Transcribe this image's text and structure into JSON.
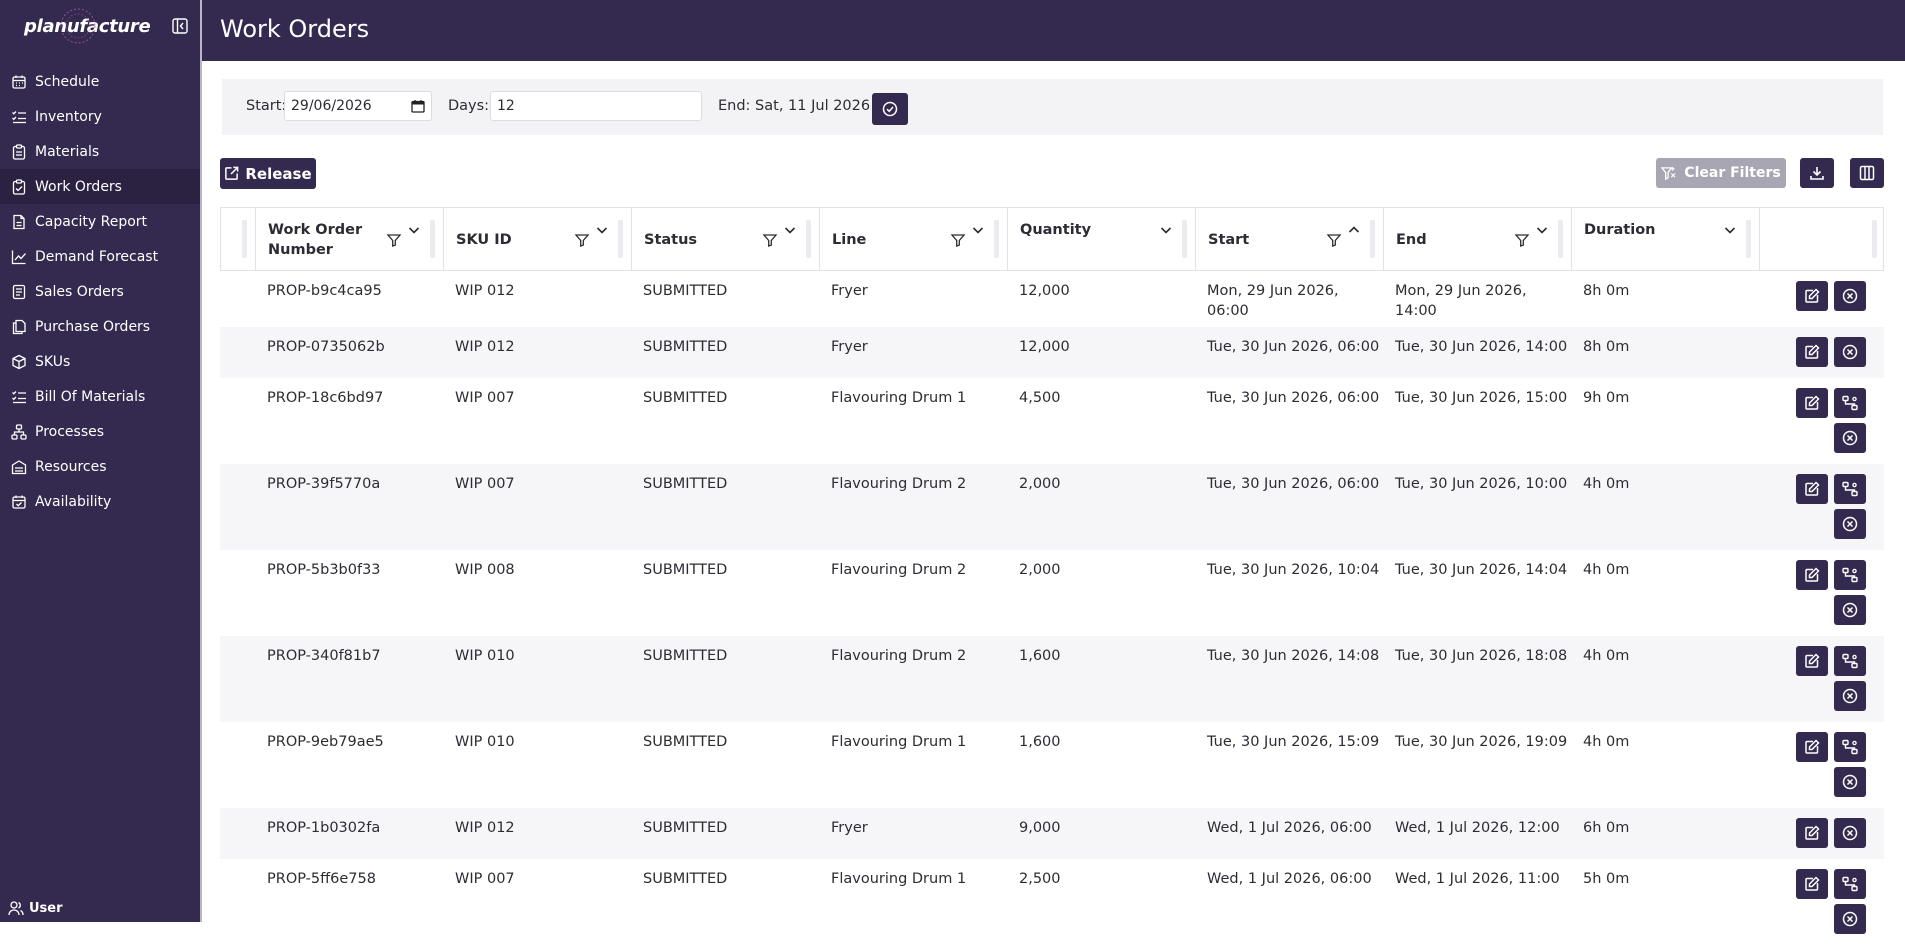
{
  "app": {
    "logo_text": "planufacture"
  },
  "header": {
    "title": "Work Orders"
  },
  "sidebar": {
    "items": [
      {
        "label": "Schedule",
        "icon": "calendar-icon"
      },
      {
        "label": "Inventory",
        "icon": "list-check-icon"
      },
      {
        "label": "Materials",
        "icon": "clipboard-icon"
      },
      {
        "label": "Work Orders",
        "icon": "clipboard-check-icon",
        "active": true
      },
      {
        "label": "Capacity Report",
        "icon": "document-icon"
      },
      {
        "label": "Demand Forecast",
        "icon": "trend-chart-icon"
      },
      {
        "label": "Sales Orders",
        "icon": "document-lines-icon"
      },
      {
        "label": "Purchase Orders",
        "icon": "documents-icon"
      },
      {
        "label": "SKUs",
        "icon": "box-icon"
      },
      {
        "label": "Bill Of Materials",
        "icon": "list-check-icon"
      },
      {
        "label": "Processes",
        "icon": "flow-icon"
      },
      {
        "label": "Resources",
        "icon": "building-icon"
      },
      {
        "label": "Availability",
        "icon": "calendar-check-icon"
      }
    ],
    "user_label": "User"
  },
  "filters": {
    "start_label": "Start:",
    "start_value": "29/06/2026",
    "days_label": "Days:",
    "days_value": "12",
    "end_text": "End: Sat, 11 Jul 2026"
  },
  "toolbar": {
    "release_label": "Release",
    "clear_filters_label": "Clear Filters"
  },
  "table": {
    "columns": [
      {
        "label": "Work Order",
        "label2": "Number",
        "filter": true,
        "sort": "none"
      },
      {
        "label": "SKU ID",
        "filter": true,
        "sort": "none"
      },
      {
        "label": "Status",
        "filter": true,
        "sort": "none"
      },
      {
        "label": "Line",
        "filter": true,
        "sort": "none"
      },
      {
        "label": "Quantity",
        "filter": false,
        "sort": "none"
      },
      {
        "label": "Start",
        "filter": true,
        "sort": "asc"
      },
      {
        "label": "End",
        "filter": true,
        "sort": "none"
      },
      {
        "label": "Duration",
        "filter": false,
        "sort": "none"
      }
    ],
    "rows": [
      {
        "wo": "PROP-b9c4ca95",
        "sku": "WIP 012",
        "status": "SUBMITTED",
        "line": "Fryer",
        "qty": "12,000",
        "start": "Mon, 29 Jun 2026,",
        "start2": "06:00",
        "end": "Mon, 29 Jun 2026,",
        "end2": "14:00",
        "duration": "8h 0m",
        "actions": [
          "edit",
          "cancel"
        ]
      },
      {
        "wo": "PROP-0735062b",
        "sku": "WIP 012",
        "status": "SUBMITTED",
        "line": "Fryer",
        "qty": "12,000",
        "start": "Tue, 30 Jun 2026, 06:00",
        "start2": "",
        "end": "Tue, 30 Jun 2026, 14:00",
        "end2": "",
        "duration": "8h 0m",
        "actions": [
          "edit",
          "cancel"
        ]
      },
      {
        "wo": "PROP-18c6bd97",
        "sku": "WIP 007",
        "status": "SUBMITTED",
        "line": "Flavouring Drum 1",
        "qty": "4,500",
        "start": "Tue, 30 Jun 2026, 06:00",
        "start2": "",
        "end": "Tue, 30 Jun 2026, 15:00",
        "end2": "",
        "duration": "9h 0m",
        "actions": [
          "edit",
          "flow",
          "cancel"
        ]
      },
      {
        "wo": "PROP-39f5770a",
        "sku": "WIP 007",
        "status": "SUBMITTED",
        "line": "Flavouring Drum 2",
        "qty": "2,000",
        "start": "Tue, 30 Jun 2026, 06:00",
        "start2": "",
        "end": "Tue, 30 Jun 2026, 10:00",
        "end2": "",
        "duration": "4h 0m",
        "actions": [
          "edit",
          "flow",
          "cancel"
        ]
      },
      {
        "wo": "PROP-5b3b0f33",
        "sku": "WIP 008",
        "status": "SUBMITTED",
        "line": "Flavouring Drum 2",
        "qty": "2,000",
        "start": "Tue, 30 Jun 2026, 10:04",
        "start2": "",
        "end": "Tue, 30 Jun 2026, 14:04",
        "end2": "",
        "duration": "4h 0m",
        "actions": [
          "edit",
          "flow",
          "cancel"
        ]
      },
      {
        "wo": "PROP-340f81b7",
        "sku": "WIP 010",
        "status": "SUBMITTED",
        "line": "Flavouring Drum 2",
        "qty": "1,600",
        "start": "Tue, 30 Jun 2026, 14:08",
        "start2": "",
        "end": "Tue, 30 Jun 2026, 18:08",
        "end2": "",
        "duration": "4h 0m",
        "actions": [
          "edit",
          "flow",
          "cancel"
        ]
      },
      {
        "wo": "PROP-9eb79ae5",
        "sku": "WIP 010",
        "status": "SUBMITTED",
        "line": "Flavouring Drum 1",
        "qty": "1,600",
        "start": "Tue, 30 Jun 2026, 15:09",
        "start2": "",
        "end": "Tue, 30 Jun 2026, 19:09",
        "end2": "",
        "duration": "4h 0m",
        "actions": [
          "edit",
          "flow",
          "cancel"
        ]
      },
      {
        "wo": "PROP-1b0302fa",
        "sku": "WIP 012",
        "status": "SUBMITTED",
        "line": "Fryer",
        "qty": "9,000",
        "start": "Wed, 1 Jul 2026, 06:00",
        "start2": "",
        "end": "Wed, 1 Jul 2026, 12:00",
        "end2": "",
        "duration": "6h 0m",
        "actions": [
          "edit",
          "cancel"
        ]
      },
      {
        "wo": "PROP-5ff6e758",
        "sku": "WIP 007",
        "status": "SUBMITTED",
        "line": "Flavouring Drum 1",
        "qty": "2,500",
        "start": "Wed, 1 Jul 2026, 06:00",
        "start2": "",
        "end": "Wed, 1 Jul 2026, 11:00",
        "end2": "",
        "duration": "5h 0m",
        "actions": [
          "edit",
          "flow",
          "cancel"
        ]
      }
    ]
  },
  "colors": {
    "brand": "#342a4f",
    "brand_dark": "#2b2242",
    "disabled": "#a9a6b3",
    "row_alt": "#f6f6f8"
  }
}
